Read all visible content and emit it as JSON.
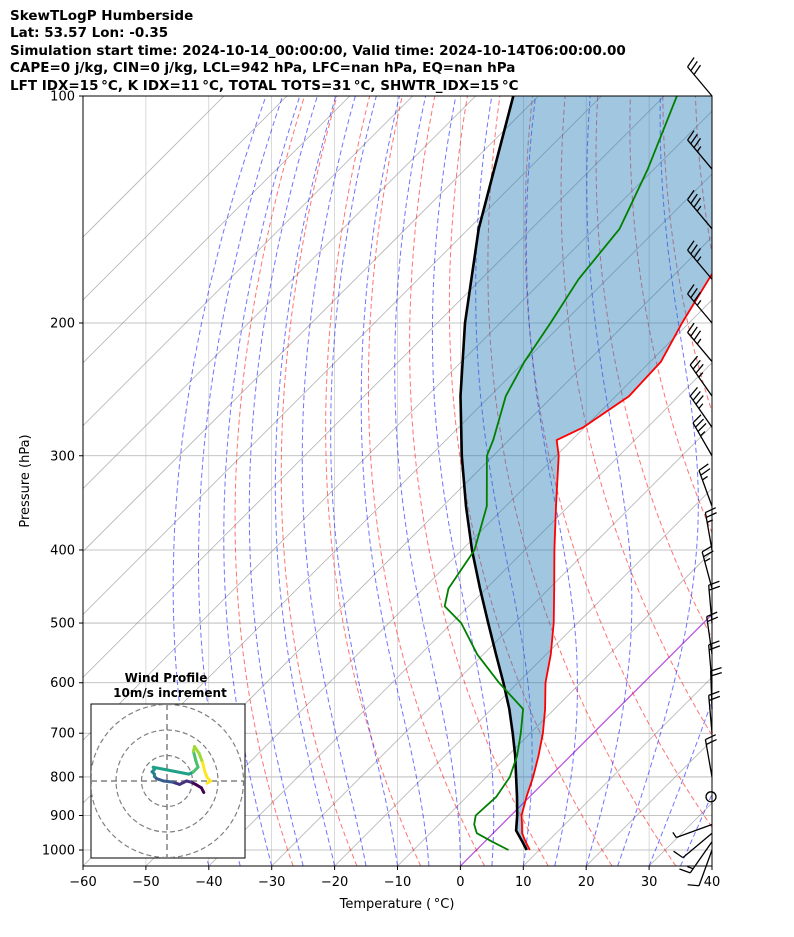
{
  "header": {
    "line1": "SkewTLogP Humberside",
    "line2": "Lat: 53.57   Lon: -0.35",
    "line3": "Simulation start time: 2024-10-14_00:00:00, Valid time: 2024-10-14T06:00:00.00",
    "line4": "CAPE=0 j/kg, CIN=0 j/kg, LCL=942 hPa, LFC=nan hPa, EQ=nan hPa",
    "line5": "LFT IDX=15 °C, K IDX=11 °C, TOTAL TOTS=31 °C, SHWTR_IDX=15 °C"
  },
  "colors": {
    "temperature": "#ff0000",
    "dewpoint": "#008000",
    "parcel": "#000000",
    "cape_fill": "#1f77b4",
    "dry_adiabat": "#ff0000",
    "moist_adiabat": "#0000ff",
    "mixing_ratio": "#0000ff",
    "isotherm": "#808080",
    "zero_isotherm": "#9900cc"
  },
  "chart_data": {
    "type": "skewt",
    "xlabel": "Temperature ( °C)",
    "ylabel": "Pressure (hPa)",
    "xlim": [
      -60,
      40
    ],
    "ylim": [
      1050,
      100
    ],
    "xticks": [
      -60,
      -50,
      -40,
      -30,
      -20,
      -10,
      0,
      10,
      20,
      30,
      40
    ],
    "yticks": [
      1000,
      900,
      800,
      700,
      600,
      500,
      400,
      300,
      200,
      100
    ],
    "grid": true,
    "temperature_profile": [
      {
        "p": 1000,
        "t": 8.5
      },
      {
        "p": 975,
        "t": 6.5
      },
      {
        "p": 950,
        "t": 4.6
      },
      {
        "p": 925,
        "t": 3.2
      },
      {
        "p": 900,
        "t": 1.7
      },
      {
        "p": 850,
        "t": -0.5
      },
      {
        "p": 800,
        "t": -2.6
      },
      {
        "p": 750,
        "t": -5.1
      },
      {
        "p": 700,
        "t": -8.0
      },
      {
        "p": 650,
        "t": -11.5
      },
      {
        "p": 600,
        "t": -15.6
      },
      {
        "p": 550,
        "t": -19.3
      },
      {
        "p": 500,
        "t": -23.8
      },
      {
        "p": 450,
        "t": -29.2
      },
      {
        "p": 400,
        "t": -35.3
      },
      {
        "p": 350,
        "t": -42.0
      },
      {
        "p": 300,
        "t": -49.6
      },
      {
        "p": 286,
        "t": -52.4
      },
      {
        "p": 275,
        "t": -50.2
      },
      {
        "p": 250,
        "t": -47.9
      },
      {
        "p": 225,
        "t": -48.3
      },
      {
        "p": 200,
        "t": -51.1
      },
      {
        "p": 175,
        "t": -53.8
      },
      {
        "p": 150,
        "t": -56.8
      },
      {
        "p": 125,
        "t": -59.5
      },
      {
        "p": 100,
        "t": -64.4
      }
    ],
    "dewpoint_profile": [
      {
        "p": 1000,
        "t": 5.1
      },
      {
        "p": 975,
        "t": 1.2
      },
      {
        "p": 950,
        "t": -2.6
      },
      {
        "p": 925,
        "t": -4.4
      },
      {
        "p": 900,
        "t": -5.6
      },
      {
        "p": 850,
        "t": -5.3
      },
      {
        "p": 800,
        "t": -6.3
      },
      {
        "p": 750,
        "t": -8.5
      },
      {
        "p": 700,
        "t": -11.5
      },
      {
        "p": 650,
        "t": -15.0
      },
      {
        "p": 600,
        "t": -23.0
      },
      {
        "p": 550,
        "t": -31.0
      },
      {
        "p": 500,
        "t": -38.5
      },
      {
        "p": 475,
        "t": -43.8
      },
      {
        "p": 450,
        "t": -46.0
      },
      {
        "p": 400,
        "t": -48.0
      },
      {
        "p": 350,
        "t": -53.0
      },
      {
        "p": 300,
        "t": -61.0
      },
      {
        "p": 286,
        "t": -62.5
      },
      {
        "p": 250,
        "t": -67.5
      },
      {
        "p": 225,
        "t": -70.0
      },
      {
        "p": 200,
        "t": -72.0
      },
      {
        "p": 175,
        "t": -74.5
      },
      {
        "p": 150,
        "t": -76.0
      },
      {
        "p": 125,
        "t": -81.0
      },
      {
        "p": 100,
        "t": -88.0
      }
    ],
    "parcel_profile": [
      {
        "p": 1000,
        "t": 8.0
      },
      {
        "p": 975,
        "t": 6.0
      },
      {
        "p": 942,
        "t": 3.2
      },
      {
        "p": 900,
        "t": 1.0
      },
      {
        "p": 850,
        "t": -2.0
      },
      {
        "p": 800,
        "t": -5.3
      },
      {
        "p": 750,
        "t": -8.8
      },
      {
        "p": 700,
        "t": -12.8
      },
      {
        "p": 650,
        "t": -17.2
      },
      {
        "p": 600,
        "t": -22.3
      },
      {
        "p": 550,
        "t": -28.0
      },
      {
        "p": 500,
        "t": -34.2
      },
      {
        "p": 450,
        "t": -41.0
      },
      {
        "p": 400,
        "t": -48.4
      },
      {
        "p": 350,
        "t": -56.3
      },
      {
        "p": 300,
        "t": -65.0
      },
      {
        "p": 250,
        "t": -74.7
      },
      {
        "p": 200,
        "t": -85.6
      },
      {
        "p": 150,
        "t": -98.4
      },
      {
        "p": 100,
        "t": -114.0
      }
    ],
    "wind_barbs": [
      {
        "p": 1000,
        "speed_kt": 12,
        "dir": 200
      },
      {
        "p": 975,
        "speed_kt": 14,
        "dir": 215
      },
      {
        "p": 950,
        "speed_kt": 10,
        "dir": 230
      },
      {
        "p": 925,
        "speed_kt": 5,
        "dir": 250
      },
      {
        "p": 850,
        "speed_kt": 1,
        "dir": 270
      },
      {
        "p": 800,
        "speed_kt": 20,
        "dir": 350
      },
      {
        "p": 700,
        "speed_kt": 20,
        "dir": 355
      },
      {
        "p": 650,
        "speed_kt": 20,
        "dir": 358
      },
      {
        "p": 600,
        "speed_kt": 20,
        "dir": 355
      },
      {
        "p": 550,
        "speed_kt": 20,
        "dir": 352
      },
      {
        "p": 500,
        "speed_kt": 20,
        "dir": 355
      },
      {
        "p": 450,
        "speed_kt": 25,
        "dir": 345
      },
      {
        "p": 400,
        "speed_kt": 25,
        "dir": 350
      },
      {
        "p": 350,
        "speed_kt": 25,
        "dir": 340
      },
      {
        "p": 300,
        "speed_kt": 35,
        "dir": 330
      },
      {
        "p": 275,
        "speed_kt": 35,
        "dir": 325
      },
      {
        "p": 250,
        "speed_kt": 35,
        "dir": 325
      },
      {
        "p": 225,
        "speed_kt": 35,
        "dir": 320
      },
      {
        "p": 200,
        "speed_kt": 35,
        "dir": 320
      },
      {
        "p": 175,
        "speed_kt": 35,
        "dir": 320
      },
      {
        "p": 150,
        "speed_kt": 35,
        "dir": 320
      },
      {
        "p": 125,
        "speed_kt": 35,
        "dir": 320
      },
      {
        "p": 100,
        "speed_kt": 30,
        "dir": 320
      }
    ],
    "hodograph": {
      "title_line1": "Wind Profile",
      "title_line2": "10m/s increment",
      "ring_step_ms": 10,
      "points_uv_ms": [
        [
          19.5,
          -5.0
        ],
        [
          18.5,
          -3.0
        ],
        [
          16.0,
          -1.5
        ],
        [
          14.0,
          -0.5
        ],
        [
          12.0,
          0.0
        ],
        [
          9.0,
          -1.5
        ],
        [
          6.0,
          -0.5
        ],
        [
          2.0,
          0.0
        ],
        [
          -1.0,
          1.0
        ],
        [
          -2.0,
          2.0
        ],
        [
          -2.0,
          3.0
        ],
        [
          -3.0,
          4.0
        ],
        [
          -2.0,
          5.0
        ],
        [
          -2.5,
          6.0
        ],
        [
          13.0,
          3.0
        ],
        [
          15.0,
          4.0
        ],
        [
          17.0,
          6.0
        ],
        [
          16.0,
          9.0
        ],
        [
          15.0,
          13.0
        ],
        [
          15.5,
          15.0
        ],
        [
          17.5,
          12.0
        ],
        [
          19.0,
          8.0
        ],
        [
          20.0,
          4.0
        ],
        [
          21.0,
          1.5
        ],
        [
          22.5,
          0.0
        ],
        [
          21.0,
          -1.0
        ]
      ]
    }
  }
}
